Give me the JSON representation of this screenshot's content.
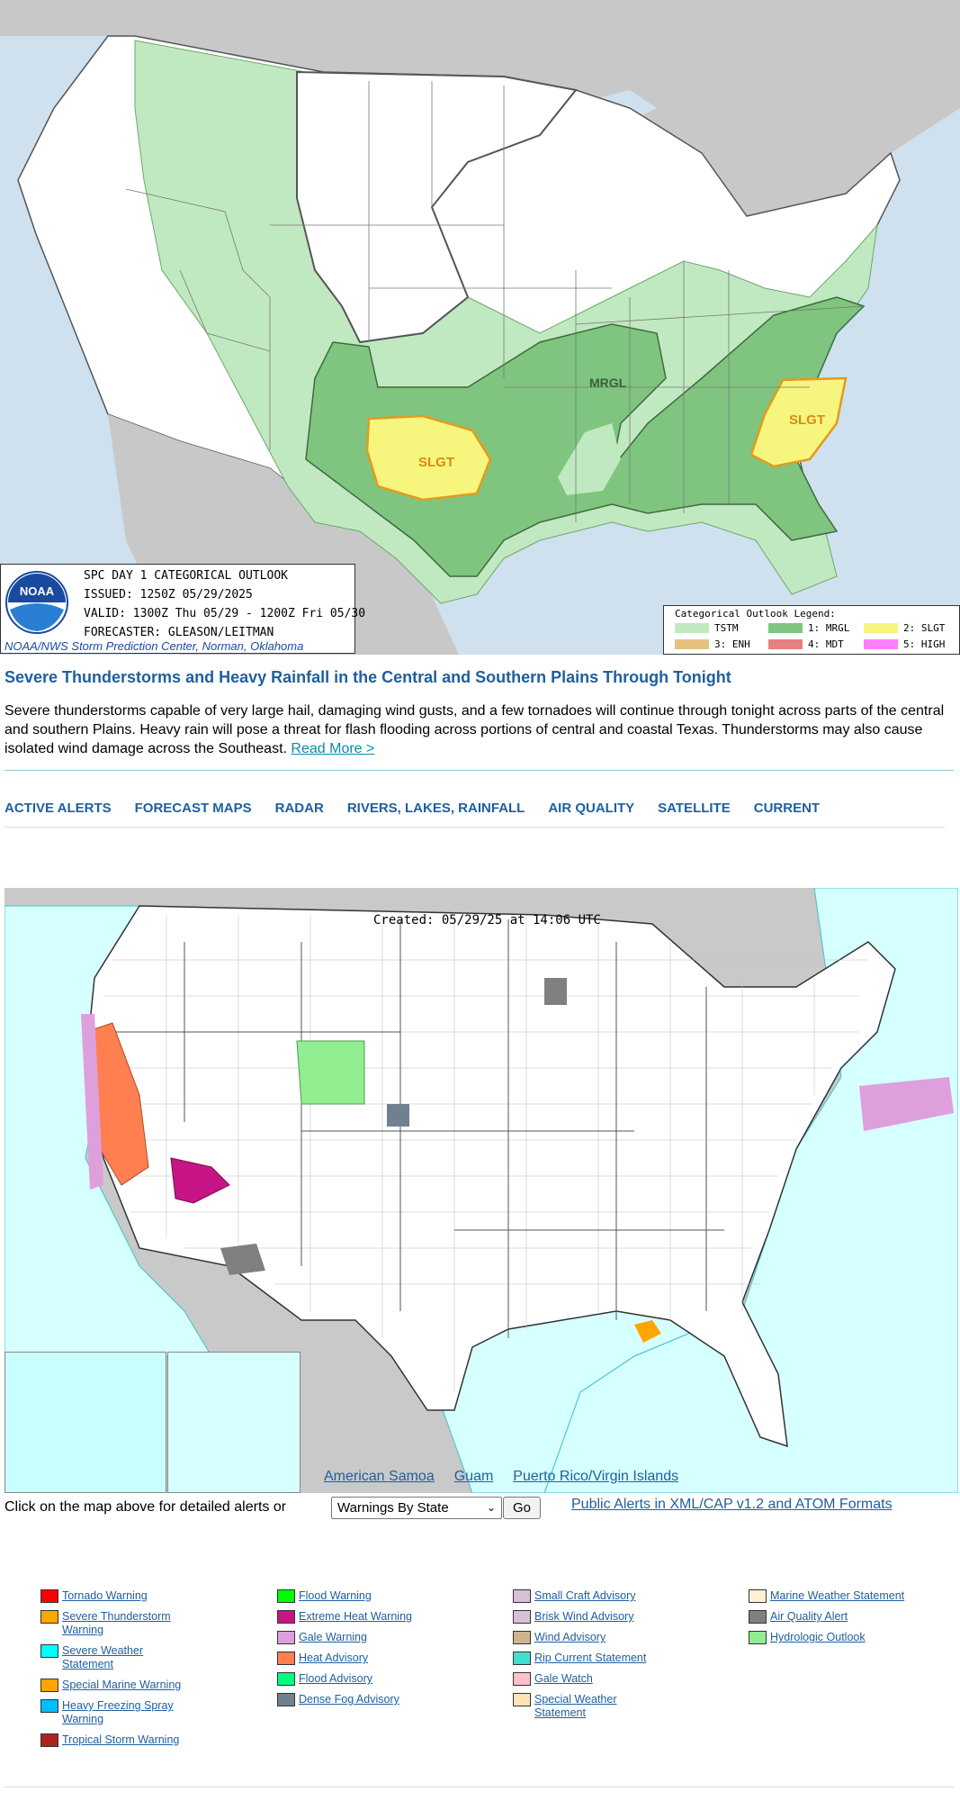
{
  "spc": {
    "title": "SPC DAY 1 CATEGORICAL OUTLOOK",
    "issued": "ISSUED: 1250Z 05/29/2025",
    "valid": "VALID: 1300Z Thu 05/29 - 1200Z Fri 05/30",
    "forecaster": "FORECASTER: GLEASON/LEITMAN",
    "credit": "NOAA/NWS Storm Prediction Center, Norman, Oklahoma",
    "logo_text": "NOAA",
    "map_labels": {
      "mrgl": "MRGL",
      "slgt_west": "SLGT",
      "slgt_east": "SLGT"
    },
    "legend": {
      "title": "Categorical Outlook Legend:",
      "items": [
        {
          "label": "TSTM",
          "color": "#c1e9c1"
        },
        {
          "label": "1: MRGL",
          "color": "#7fc57f"
        },
        {
          "label": "2: SLGT",
          "color": "#f6f67f"
        },
        {
          "label": "3: ENH",
          "color": "#e6c27f"
        },
        {
          "label": "4: MDT",
          "color": "#e67f7f"
        },
        {
          "label": "5: HIGH",
          "color": "#ff7fff"
        }
      ]
    }
  },
  "headline": "Severe Thunderstorms and Heavy Rainfall in the Central and Southern Plains Through Tonight",
  "summary": "Severe thunderstorms capable of very large hail, damaging wind gusts, and a few tornadoes will continue through tonight across parts of the central and southern Plains. Heavy rain will pose a threat for flash flooding across portions of central and coastal Texas. Thunderstorms may also cause isolated wind damage across the Southeast.",
  "read_more": "Read More >",
  "nav": [
    "ACTIVE ALERTS",
    "FORECAST MAPS",
    "RADAR",
    "RIVERS, LAKES, RAINFALL",
    "AIR QUALITY",
    "SATELLITE",
    "CURRENT"
  ],
  "alerts_map": {
    "created": "Created: 05/29/25 at 14:06 UTC",
    "territories": [
      "American Samoa",
      "Guam",
      "Puerto Rico/Virgin Islands"
    ]
  },
  "controls": {
    "prompt": "Click on the map above for detailed alerts or",
    "select_value": "Warnings By State",
    "go": "Go",
    "cap_link": "Public Alerts in XML/CAP v1.2 and ATOM Formats"
  },
  "key": {
    "col1": [
      {
        "label": "Tornado Warning",
        "color": "#ff0000"
      },
      {
        "label": "Severe Thunderstorm Warning",
        "color": "#ffa500"
      },
      {
        "label": "Severe Weather Statement",
        "color": "#00ffff"
      },
      {
        "label": "Special Marine Warning",
        "color": "#ffa500"
      },
      {
        "label": "Heavy Freezing Spray Warning",
        "color": "#00bfff"
      },
      {
        "label": "Tropical Storm Warning",
        "color": "#b22222"
      }
    ],
    "col2": [
      {
        "label": "Flood Warning",
        "color": "#00ff00"
      },
      {
        "label": "Extreme Heat Warning",
        "color": "#c71585"
      },
      {
        "label": "Gale Warning",
        "color": "#dda0dd"
      },
      {
        "label": "Heat Advisory",
        "color": "#ff7f50"
      },
      {
        "label": "Flood Advisory",
        "color": "#00ff7f"
      },
      {
        "label": "Dense Fog Advisory",
        "color": "#708090"
      }
    ],
    "col3": [
      {
        "label": "Small Craft Advisory",
        "color": "#d8bfd8"
      },
      {
        "label": "Brisk Wind Advisory",
        "color": "#d8bfd8"
      },
      {
        "label": "Wind Advisory",
        "color": "#d2b48c"
      },
      {
        "label": "Rip Current Statement",
        "color": "#40e0d0"
      },
      {
        "label": "Gale Watch",
        "color": "#ffc0cb"
      },
      {
        "label": "Special Weather Statement",
        "color": "#ffe4b5"
      }
    ],
    "col4": [
      {
        "label": "Marine Weather Statement",
        "color": "#ffefd5"
      },
      {
        "label": "Air Quality Alert",
        "color": "#808080"
      },
      {
        "label": "Hydrologic Outlook",
        "color": "#90ee90"
      }
    ]
  }
}
